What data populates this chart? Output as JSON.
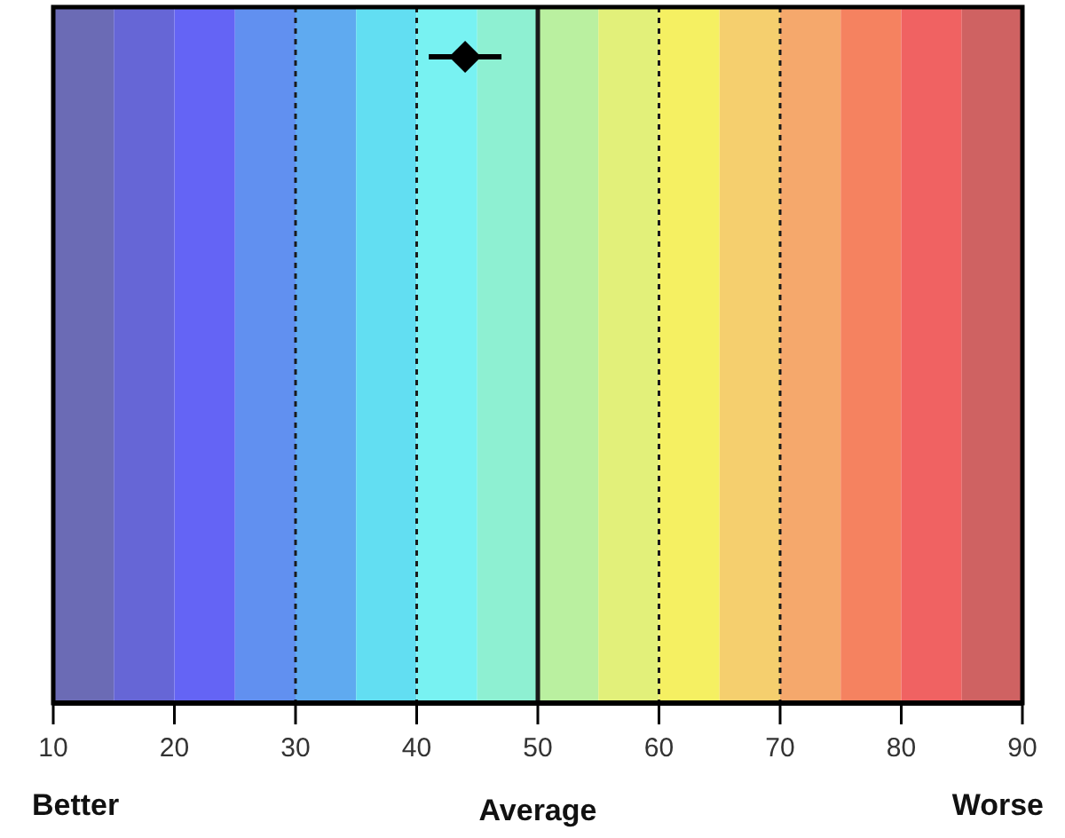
{
  "chart_data": {
    "type": "scatter",
    "orientation": "horizontal",
    "categories": [
      null
    ],
    "values": [
      44
    ],
    "errors": [
      [
        41,
        47
      ]
    ],
    "color": "#000000",
    "marker": "diamond",
    "xlim": [
      10,
      90
    ],
    "xticks": [
      10,
      20,
      30,
      40,
      50,
      60,
      70,
      80,
      90
    ],
    "bands": [
      {
        "axis": "x",
        "from": 10,
        "to": 15,
        "color": "#6b6bb5"
      },
      {
        "axis": "x",
        "from": 15,
        "to": 20,
        "color": "#6666d6"
      },
      {
        "axis": "x",
        "from": 20,
        "to": 25,
        "color": "#6464f5"
      },
      {
        "axis": "x",
        "from": 25,
        "to": 30,
        "color": "#6190f0"
      },
      {
        "axis": "x",
        "from": 30,
        "to": 35,
        "color": "#5faaf0"
      },
      {
        "axis": "x",
        "from": 35,
        "to": 40,
        "color": "#62def2"
      },
      {
        "axis": "x",
        "from": 40,
        "to": 45,
        "color": "#78f2f2"
      },
      {
        "axis": "x",
        "from": 45,
        "to": 50,
        "color": "#8ef0d2"
      },
      {
        "axis": "x",
        "from": 50,
        "to": 55,
        "color": "#baf0a0"
      },
      {
        "axis": "x",
        "from": 55,
        "to": 60,
        "color": "#e2f07a"
      },
      {
        "axis": "x",
        "from": 60,
        "to": 65,
        "color": "#f5f062"
      },
      {
        "axis": "x",
        "from": 65,
        "to": 70,
        "color": "#f5cf6e"
      },
      {
        "axis": "x",
        "from": 70,
        "to": 75,
        "color": "#f5a86c"
      },
      {
        "axis": "x",
        "from": 75,
        "to": 80,
        "color": "#f58260"
      },
      {
        "axis": "x",
        "from": 80,
        "to": 85,
        "color": "#f06262"
      },
      {
        "axis": "x",
        "from": 85,
        "to": 90,
        "color": "#cf6262"
      }
    ],
    "ref_lines": [
      {
        "axis": "x",
        "value": 30,
        "line_style": "dashed"
      },
      {
        "axis": "x",
        "value": 40,
        "line_style": "dashed"
      },
      {
        "axis": "x",
        "value": 50,
        "line_style": "solid"
      },
      {
        "axis": "x",
        "value": 60,
        "line_style": "dashed"
      },
      {
        "axis": "x",
        "value": 70,
        "line_style": "dashed"
      }
    ],
    "annotations": [
      "Better",
      "Average",
      "Worse"
    ]
  }
}
